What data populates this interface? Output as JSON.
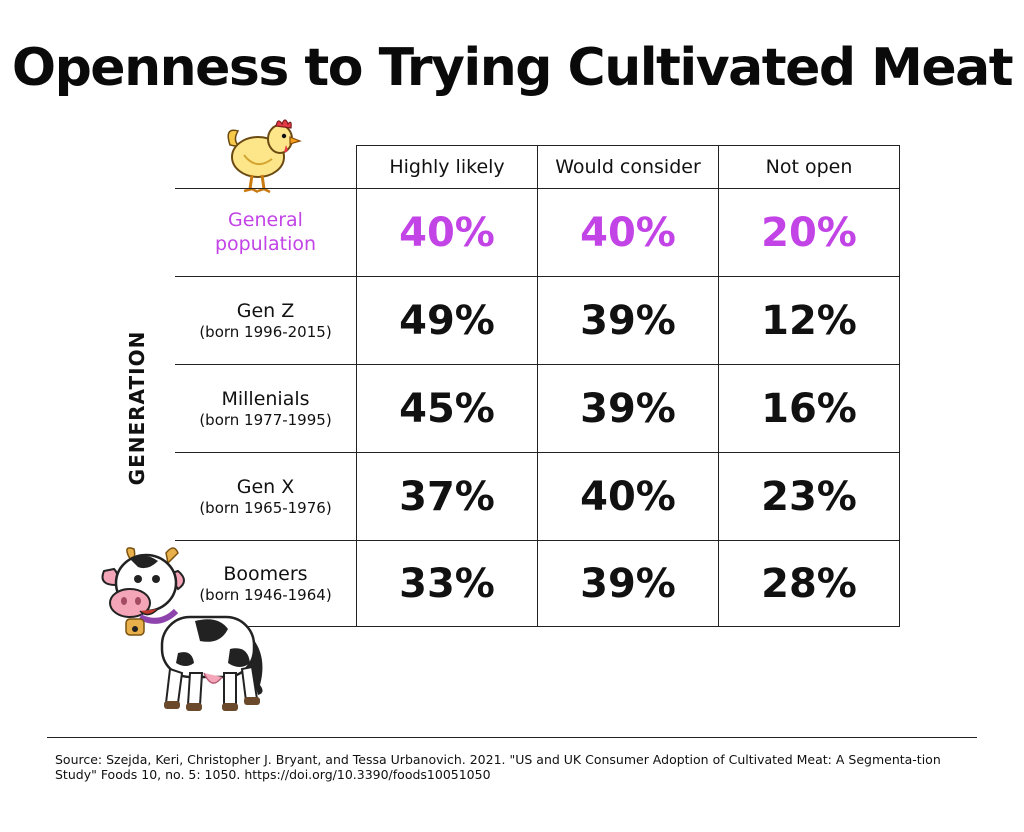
{
  "chart_data": {
    "type": "table",
    "title": "Openness to Trying Cultivated Meat",
    "row_axis_label": "GENERATION",
    "columns": [
      "Highly likely",
      "Would consider",
      "Not open"
    ],
    "rows": [
      {
        "label": "General population",
        "sublabel": "",
        "values": [
          "40%",
          "40%",
          "20%"
        ],
        "highlight": true
      },
      {
        "label": "Gen Z",
        "sublabel": "(born 1996-2015)",
        "values": [
          "49%",
          "39%",
          "12%"
        ]
      },
      {
        "label": "Millenials",
        "sublabel": "(born 1977-1995)",
        "values": [
          "45%",
          "39%",
          "16%"
        ]
      },
      {
        "label": "Gen X",
        "sublabel": "(born 1965-1976)",
        "values": [
          "37%",
          "40%",
          "23%"
        ]
      },
      {
        "label": "Boomers",
        "sublabel": "(born 1946-1964)",
        "values": [
          "33%",
          "39%",
          "28%"
        ]
      }
    ],
    "highlight_color": "#c243e6"
  },
  "source": "Source:  Szejda, Keri, Christopher J. Bryant, and Tessa Urbanovich. 2021. \"US and UK Consumer Adoption of Cultivated Meat: A Segmenta-tion Study\" Foods 10, no. 5: 1050. https://doi.org/10.3390/foods10051050",
  "icons": {
    "top": "chicken-illustration",
    "bottom": "cow-illustration"
  }
}
